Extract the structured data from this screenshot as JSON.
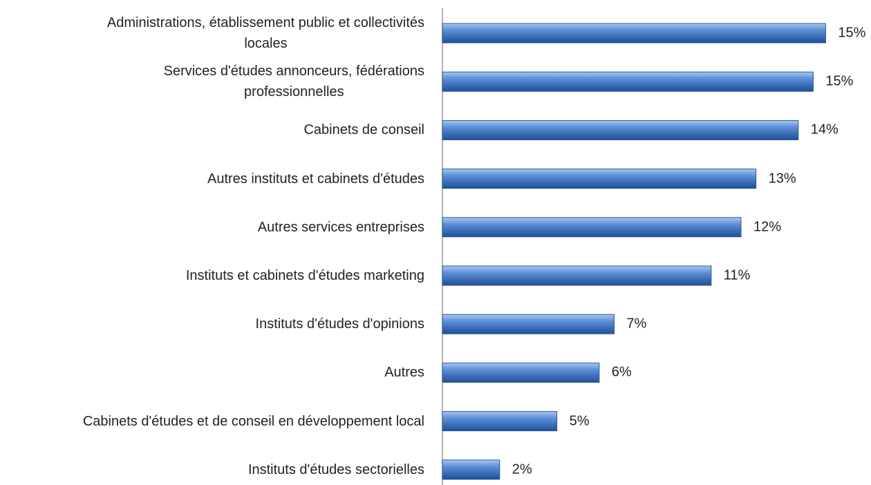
{
  "chart_data": {
    "type": "barh",
    "categories": [
      "Administrations, établissement public et collectivités\nlocales",
      "Services d'études annonceurs, fédérations\nprofessionnelles",
      "Cabinets de conseil",
      "Autres instituts et cabinets d'études",
      "Autres services entreprises",
      "Instituts et cabinets d'études marketing",
      "Instituts d'études d'opinions",
      "Autres",
      "Cabinets d'études et de conseil en développement local",
      "Instituts d'études sectorielles"
    ],
    "values": [
      15.4,
      14.9,
      14.3,
      12.6,
      12.0,
      10.8,
      6.9,
      6.3,
      4.6,
      2.3
    ],
    "value_labels": [
      "15%",
      "15%",
      "14%",
      "13%",
      "12%",
      "11%",
      "7%",
      "6%",
      "5%",
      "2%"
    ],
    "color": "#4a7fc8",
    "xlim": [
      0,
      17
    ]
  }
}
